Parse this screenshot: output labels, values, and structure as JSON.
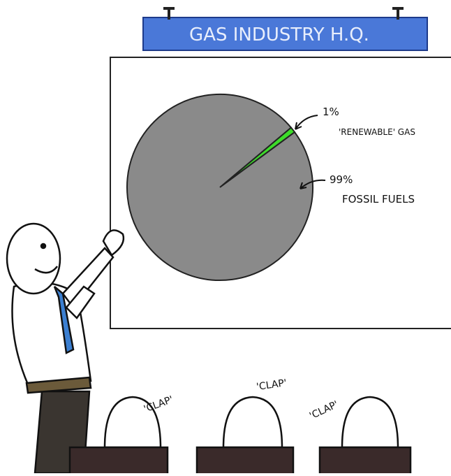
{
  "sign": {
    "title": "GAS INDUSTRY H.Q."
  },
  "chart_data": {
    "type": "pie",
    "categories": [
      "'RENEWABLE' GAS",
      "FOSSIL FUELS"
    ],
    "values": [
      1,
      99
    ],
    "value_labels": [
      "1%",
      "99%"
    ],
    "colors": [
      "#3ddc2a",
      "#8a8a8a"
    ]
  },
  "claps": [
    "'CLAP'",
    "'CLAP'",
    "'CLAP'"
  ]
}
